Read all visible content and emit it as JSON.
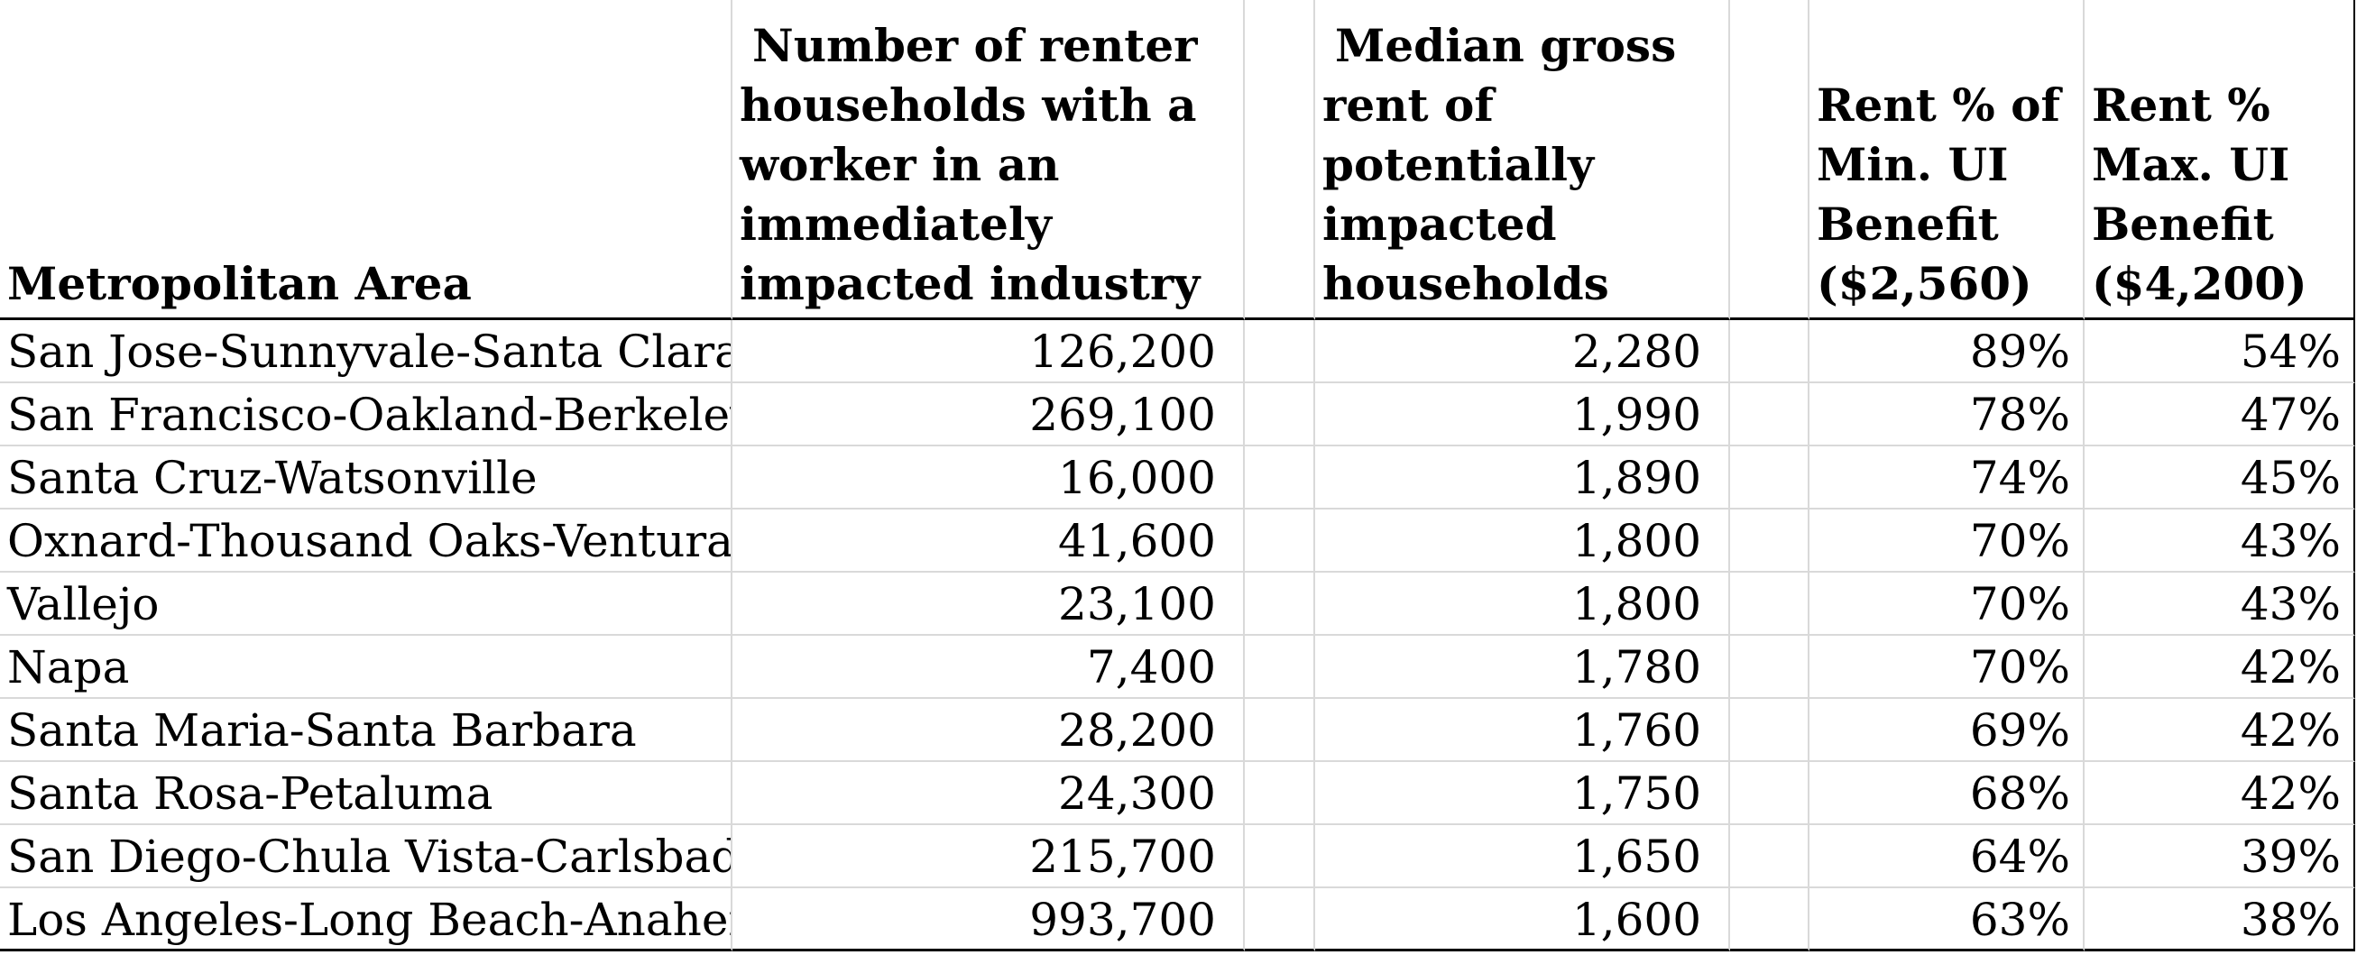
{
  "table": {
    "headers": {
      "area": "Metropolitan Area",
      "households": "Number of renter households with a worker in an immediately impacted industry",
      "rent": "Median gross rent of potentially impacted households",
      "min_ui": "Rent % of Min. UI Benefit ($2,560)",
      "max_ui": "Rent % Max. UI Benefit ($4,200)"
    },
    "rows": [
      {
        "area": "San Jose-Sunnyvale-Santa Clara",
        "households": "126,200",
        "rent": "2,280",
        "min_ui": "89%",
        "max_ui": "54%"
      },
      {
        "area": "San Francisco-Oakland-Berkeley",
        "households": "269,100",
        "rent": "1,990",
        "min_ui": "78%",
        "max_ui": "47%"
      },
      {
        "area": "Santa Cruz-Watsonville",
        "households": "16,000",
        "rent": "1,890",
        "min_ui": "74%",
        "max_ui": "45%"
      },
      {
        "area": "Oxnard-Thousand Oaks-Ventura",
        "households": "41,600",
        "rent": "1,800",
        "min_ui": "70%",
        "max_ui": "43%"
      },
      {
        "area": "Vallejo",
        "households": "23,100",
        "rent": "1,800",
        "min_ui": "70%",
        "max_ui": "43%"
      },
      {
        "area": "Napa",
        "households": "7,400",
        "rent": "1,780",
        "min_ui": "70%",
        "max_ui": "42%"
      },
      {
        "area": "Santa Maria-Santa Barbara",
        "households": "28,200",
        "rent": "1,760",
        "min_ui": "69%",
        "max_ui": "42%"
      },
      {
        "area": "Santa Rosa-Petaluma",
        "households": "24,300",
        "rent": "1,750",
        "min_ui": "68%",
        "max_ui": "42%"
      },
      {
        "area": "San Diego-Chula Vista-Carlsbad",
        "households": "215,700",
        "rent": "1,650",
        "min_ui": "64%",
        "max_ui": "39%"
      },
      {
        "area": "Los Angeles-Long Beach-Anaheim",
        "households": "993,700",
        "rent": "1,600",
        "min_ui": "63%",
        "max_ui": "38%"
      }
    ]
  }
}
